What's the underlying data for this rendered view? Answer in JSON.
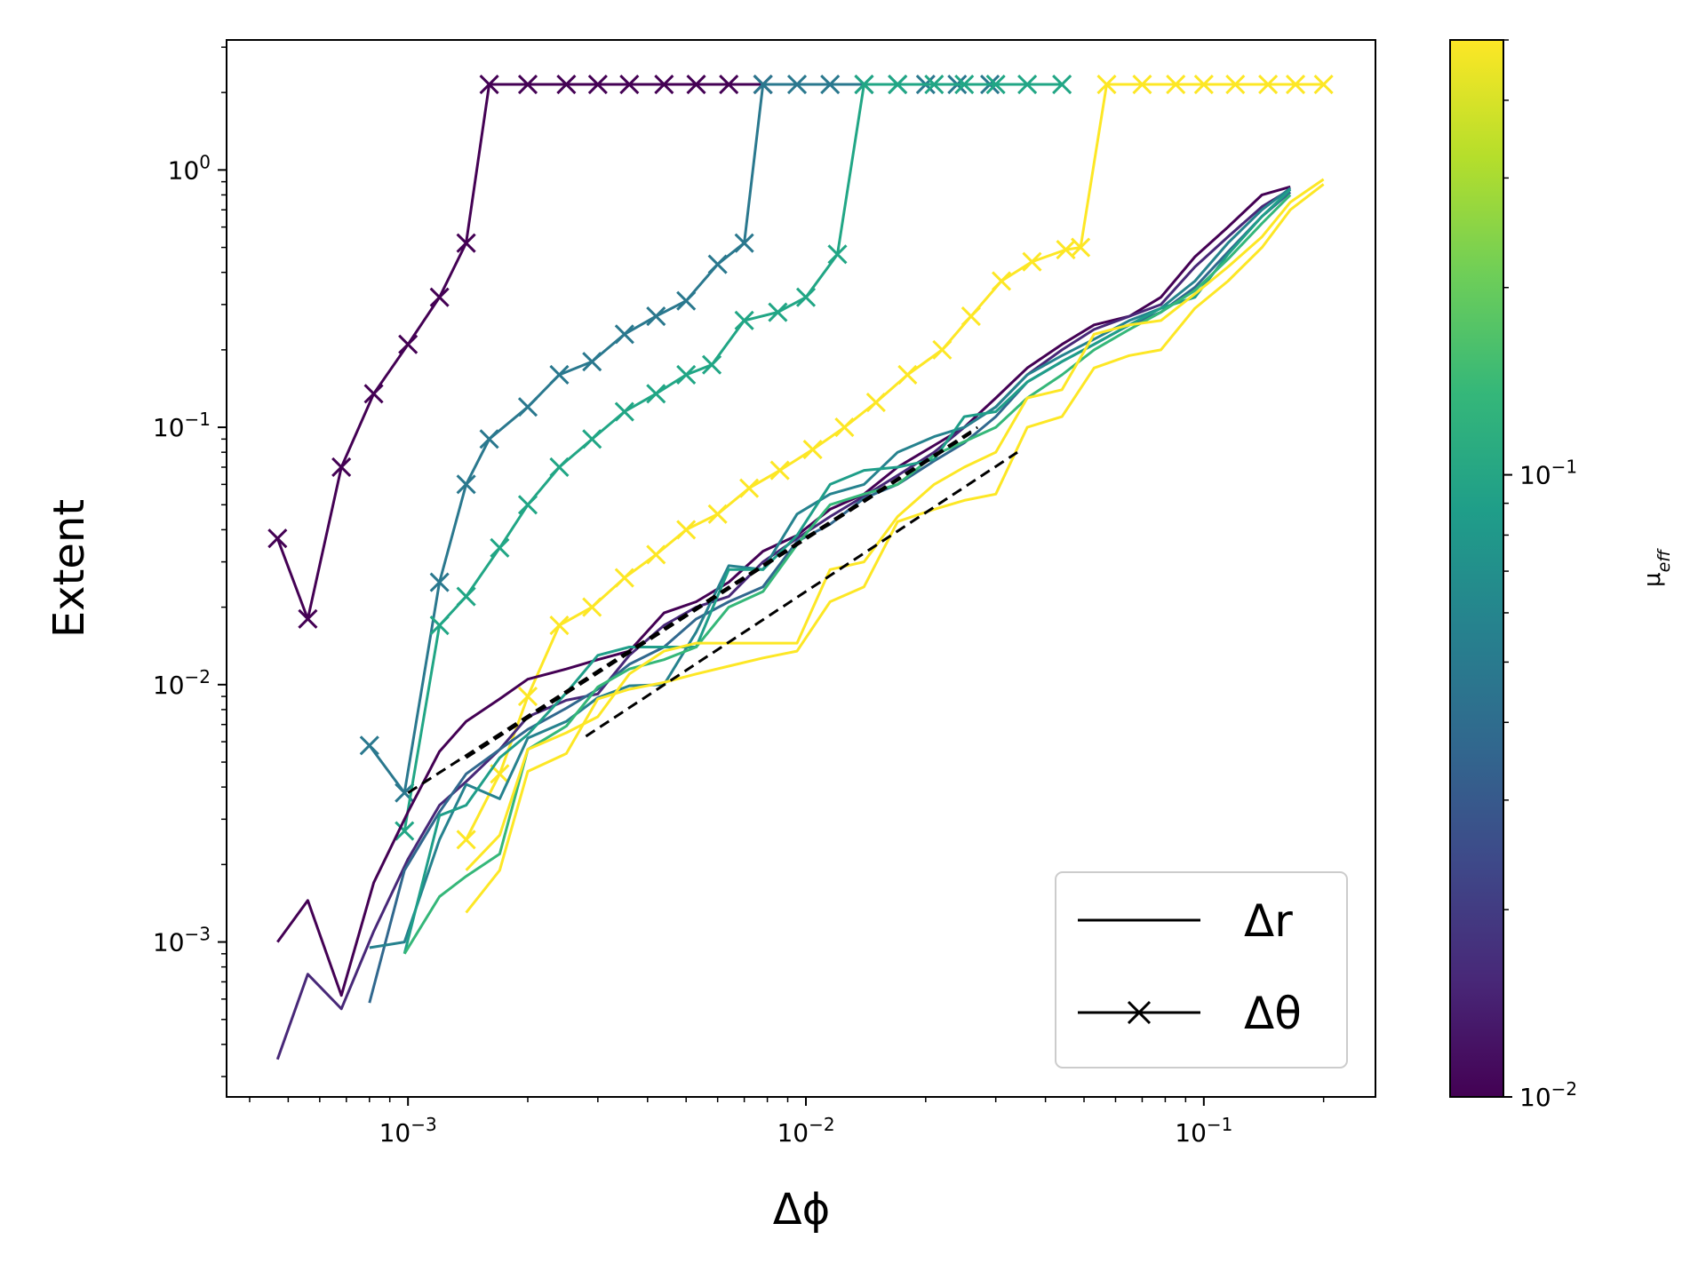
{
  "chart_data": {
    "type": "line",
    "title": "",
    "xlabel": "Δϕ",
    "ylabel": "Extent",
    "xscale": "log",
    "yscale": "log",
    "xlim": [
      0.00035,
      0.27
    ],
    "ylim": [
      0.00025,
      3.2
    ],
    "grid": false,
    "x_ticks": [
      {
        "value": 0.001,
        "base": "10",
        "exp": "−3"
      },
      {
        "value": 0.01,
        "base": "10",
        "exp": "−2"
      },
      {
        "value": 0.1,
        "base": "10",
        "exp": "−1"
      }
    ],
    "y_ticks": [
      {
        "value": 0.001,
        "base": "10",
        "exp": "−3"
      },
      {
        "value": 0.01,
        "base": "10",
        "exp": "−2"
      },
      {
        "value": 0.1,
        "base": "10",
        "exp": "−1"
      },
      {
        "value": 1,
        "base": "10",
        "exp": "0"
      }
    ],
    "legend": {
      "placement": "lower right",
      "entries": [
        {
          "label": "Δr",
          "style": "line"
        },
        {
          "label": "Δθ",
          "style": "line-x"
        }
      ]
    },
    "colorbar": {
      "label": "μ_eff",
      "scale": "log",
      "range": [
        0.01,
        0.5
      ],
      "colormap": "viridis",
      "ticks": [
        {
          "value": 0.01,
          "base": "10",
          "exp": "−2"
        },
        {
          "value": 0.1,
          "base": "10",
          "exp": "−1"
        }
      ],
      "colors": [
        "#440154",
        "#482878",
        "#3e4989",
        "#31688e",
        "#26828e",
        "#1f9e89",
        "#35b779",
        "#6ece58",
        "#b5de2b",
        "#fde725"
      ]
    },
    "series": [
      {
        "style": "x",
        "color": "#440154",
        "x": [
          0.00047,
          0.00056,
          0.00068,
          0.00082,
          0.001,
          0.0012,
          0.0014,
          0.0016,
          0.002,
          0.0025,
          0.003,
          0.0036,
          0.0044,
          0.0053,
          0.0064,
          0.0078
        ],
        "y": [
          0.037,
          0.018,
          0.07,
          0.135,
          0.21,
          0.32,
          0.52,
          2.15,
          2.15,
          2.15,
          2.15,
          2.15,
          2.15,
          2.15,
          2.15,
          2.15
        ]
      },
      {
        "style": "x",
        "color": "#2a788e",
        "x": [
          0.0008,
          0.00098,
          0.0012,
          0.0014,
          0.0016,
          0.002,
          0.0024,
          0.0029,
          0.0035,
          0.0042,
          0.005,
          0.006,
          0.007,
          0.0078,
          0.0095,
          0.0115,
          0.014,
          0.017,
          0.02,
          0.024,
          0.029
        ],
        "y": [
          0.0058,
          0.0038,
          0.025,
          0.06,
          0.09,
          0.12,
          0.16,
          0.18,
          0.23,
          0.27,
          0.31,
          0.43,
          0.52,
          2.15,
          2.15,
          2.15,
          2.15,
          2.15,
          2.15,
          2.15,
          2.15
        ]
      },
      {
        "style": "x",
        "color": "#21a685",
        "x": [
          0.00098,
          0.0012,
          0.0014,
          0.0017,
          0.002,
          0.0024,
          0.0029,
          0.0035,
          0.0042,
          0.005,
          0.0058,
          0.007,
          0.0085,
          0.01,
          0.012,
          0.014,
          0.017,
          0.021,
          0.025,
          0.03,
          0.036,
          0.044
        ],
        "y": [
          0.0027,
          0.017,
          0.022,
          0.034,
          0.05,
          0.07,
          0.09,
          0.115,
          0.135,
          0.16,
          0.175,
          0.26,
          0.28,
          0.32,
          0.47,
          2.15,
          2.15,
          2.15,
          2.15,
          2.15,
          2.15,
          2.15
        ]
      },
      {
        "style": "x",
        "color": "#fde725",
        "x": [
          0.0014,
          0.0017,
          0.002,
          0.0024,
          0.0029,
          0.0035,
          0.0042,
          0.005,
          0.006,
          0.0072,
          0.0086,
          0.0104,
          0.0125,
          0.015,
          0.018,
          0.022,
          0.026,
          0.031,
          0.037,
          0.045,
          0.049,
          0.057,
          0.07,
          0.085,
          0.1,
          0.12,
          0.145,
          0.17,
          0.2
        ],
        "y": [
          0.0025,
          0.0045,
          0.009,
          0.017,
          0.02,
          0.026,
          0.032,
          0.04,
          0.046,
          0.058,
          0.068,
          0.082,
          0.1,
          0.125,
          0.16,
          0.2,
          0.27,
          0.37,
          0.44,
          0.49,
          0.5,
          2.15,
          2.15,
          2.15,
          2.15,
          2.15,
          2.15,
          2.15,
          2.15
        ]
      },
      {
        "style": "line",
        "color": "#440154",
        "x": [
          0.00047,
          0.00056,
          0.00068,
          0.00082,
          0.001,
          0.0012,
          0.0014,
          0.0017,
          0.002,
          0.0025,
          0.003,
          0.0036,
          0.0044,
          0.0053,
          0.0064,
          0.0078,
          0.0095,
          0.0115,
          0.014,
          0.017,
          0.021,
          0.025,
          0.03,
          0.036,
          0.044,
          0.053,
          0.065,
          0.078,
          0.095,
          0.115,
          0.14,
          0.165
        ],
        "y": [
          0.001,
          0.00145,
          0.00062,
          0.0017,
          0.0032,
          0.0055,
          0.0072,
          0.0088,
          0.0105,
          0.0115,
          0.0125,
          0.0135,
          0.019,
          0.021,
          0.025,
          0.033,
          0.038,
          0.048,
          0.055,
          0.07,
          0.085,
          0.1,
          0.13,
          0.17,
          0.21,
          0.25,
          0.27,
          0.32,
          0.46,
          0.6,
          0.8,
          0.86
        ]
      },
      {
        "style": "line",
        "color": "#482878",
        "x": [
          0.00047,
          0.00056,
          0.00068,
          0.00082,
          0.001,
          0.0012,
          0.0014,
          0.0017,
          0.002,
          0.0025,
          0.003,
          0.0036,
          0.0044,
          0.0053,
          0.0064,
          0.0078,
          0.0095,
          0.0115,
          0.014,
          0.017,
          0.021,
          0.025,
          0.03,
          0.036,
          0.044,
          0.053,
          0.065,
          0.078,
          0.095,
          0.115,
          0.14,
          0.165
        ],
        "y": [
          0.00035,
          0.00075,
          0.00055,
          0.0011,
          0.0021,
          0.0034,
          0.0042,
          0.0056,
          0.0075,
          0.0087,
          0.0092,
          0.013,
          0.017,
          0.02,
          0.022,
          0.03,
          0.037,
          0.045,
          0.054,
          0.065,
          0.08,
          0.1,
          0.12,
          0.16,
          0.2,
          0.24,
          0.27,
          0.3,
          0.42,
          0.55,
          0.72,
          0.84
        ]
      },
      {
        "style": "line",
        "color": "#31688e",
        "x": [
          0.0008,
          0.00098,
          0.0012,
          0.0014,
          0.0017,
          0.002,
          0.0025,
          0.003,
          0.0036,
          0.0044,
          0.0053,
          0.0064,
          0.0078,
          0.0095,
          0.0115,
          0.014,
          0.017,
          0.021,
          0.025,
          0.03,
          0.036,
          0.044,
          0.053,
          0.065,
          0.078,
          0.095,
          0.115,
          0.14,
          0.165
        ],
        "y": [
          0.00058,
          0.0019,
          0.0032,
          0.0045,
          0.0056,
          0.0067,
          0.0081,
          0.0096,
          0.012,
          0.014,
          0.018,
          0.021,
          0.024,
          0.036,
          0.042,
          0.053,
          0.06,
          0.074,
          0.087,
          0.11,
          0.15,
          0.18,
          0.21,
          0.25,
          0.28,
          0.35,
          0.48,
          0.66,
          0.82
        ]
      },
      {
        "style": "line",
        "color": "#26828e",
        "x": [
          0.0008,
          0.00098,
          0.0012,
          0.0014,
          0.0017,
          0.002,
          0.0025,
          0.003,
          0.0036,
          0.0044,
          0.0053,
          0.0064,
          0.0078,
          0.0095,
          0.0115,
          0.014,
          0.017,
          0.021,
          0.025,
          0.03,
          0.036,
          0.044,
          0.053,
          0.065,
          0.078,
          0.095,
          0.115,
          0.14,
          0.165
        ],
        "y": [
          0.00095,
          0.001,
          0.0025,
          0.0041,
          0.0036,
          0.0062,
          0.0072,
          0.0089,
          0.0099,
          0.01,
          0.016,
          0.029,
          0.028,
          0.046,
          0.055,
          0.06,
          0.08,
          0.092,
          0.1,
          0.12,
          0.16,
          0.19,
          0.22,
          0.26,
          0.29,
          0.37,
          0.52,
          0.7,
          0.85
        ]
      },
      {
        "style": "line",
        "color": "#1f9e89",
        "x": [
          0.00098,
          0.0012,
          0.0014,
          0.0017,
          0.002,
          0.0025,
          0.003,
          0.0036,
          0.0044,
          0.0053,
          0.0064,
          0.0078,
          0.0095,
          0.0115,
          0.014,
          0.017,
          0.021,
          0.025,
          0.03,
          0.036,
          0.044,
          0.053,
          0.065,
          0.078,
          0.095,
          0.115,
          0.14,
          0.165
        ],
        "y": [
          0.0009,
          0.0031,
          0.0034,
          0.0052,
          0.0064,
          0.0093,
          0.013,
          0.014,
          0.014,
          0.014,
          0.028,
          0.028,
          0.038,
          0.06,
          0.068,
          0.07,
          0.075,
          0.11,
          0.115,
          0.15,
          0.18,
          0.21,
          0.25,
          0.29,
          0.32,
          0.47,
          0.66,
          0.84
        ]
      },
      {
        "style": "line",
        "color": "#35b779",
        "x": [
          0.00098,
          0.0012,
          0.0014,
          0.0017,
          0.002,
          0.0025,
          0.003,
          0.0036,
          0.0044,
          0.0053,
          0.0064,
          0.0078,
          0.0095,
          0.0115,
          0.014,
          0.017,
          0.021,
          0.025,
          0.03,
          0.036,
          0.044,
          0.053,
          0.065,
          0.078,
          0.095,
          0.115,
          0.14,
          0.165
        ],
        "y": [
          0.0009,
          0.0015,
          0.0018,
          0.0022,
          0.0056,
          0.0069,
          0.0098,
          0.0115,
          0.0125,
          0.014,
          0.02,
          0.023,
          0.035,
          0.05,
          0.055,
          0.06,
          0.078,
          0.088,
          0.1,
          0.13,
          0.16,
          0.2,
          0.24,
          0.28,
          0.34,
          0.45,
          0.62,
          0.8
        ]
      },
      {
        "style": "line",
        "color": "#fde725",
        "x": [
          0.0014,
          0.0017,
          0.002,
          0.0025,
          0.003,
          0.0036,
          0.0044,
          0.0053,
          0.0064,
          0.0078,
          0.0095,
          0.0115,
          0.014,
          0.017,
          0.021,
          0.025,
          0.03,
          0.036,
          0.044,
          0.053,
          0.065,
          0.078,
          0.095,
          0.115,
          0.14,
          0.165,
          0.2
        ],
        "y": [
          0.0013,
          0.0019,
          0.0046,
          0.0054,
          0.0088,
          0.0096,
          0.0102,
          0.011,
          0.0118,
          0.0127,
          0.0135,
          0.021,
          0.024,
          0.043,
          0.048,
          0.052,
          0.055,
          0.1,
          0.11,
          0.17,
          0.19,
          0.2,
          0.29,
          0.37,
          0.5,
          0.7,
          0.88
        ]
      },
      {
        "style": "line",
        "color": "#fde725",
        "x": [
          0.0014,
          0.0017,
          0.002,
          0.0025,
          0.003,
          0.0036,
          0.0044,
          0.0053,
          0.0064,
          0.0078,
          0.0095,
          0.0115,
          0.014,
          0.017,
          0.021,
          0.025,
          0.03,
          0.036,
          0.044,
          0.053,
          0.065,
          0.078,
          0.095,
          0.115,
          0.14,
          0.165,
          0.2
        ],
        "y": [
          0.0019,
          0.0026,
          0.0056,
          0.0065,
          0.0075,
          0.011,
          0.0135,
          0.0145,
          0.0145,
          0.0145,
          0.0145,
          0.028,
          0.03,
          0.045,
          0.06,
          0.07,
          0.08,
          0.13,
          0.14,
          0.23,
          0.25,
          0.26,
          0.33,
          0.42,
          0.55,
          0.75,
          0.92
        ]
      },
      {
        "style": "dashed",
        "color": "#000000",
        "x": [
          0.001,
          0.027
        ],
        "y": [
          0.0038,
          0.1
        ]
      },
      {
        "style": "dashed",
        "color": "#000000",
        "x": [
          0.0014,
          0.026
        ],
        "y": [
          0.0052,
          0.095
        ]
      },
      {
        "style": "dashed",
        "color": "#000000",
        "x": [
          0.0028,
          0.034
        ],
        "y": [
          0.0063,
          0.08
        ]
      }
    ]
  }
}
